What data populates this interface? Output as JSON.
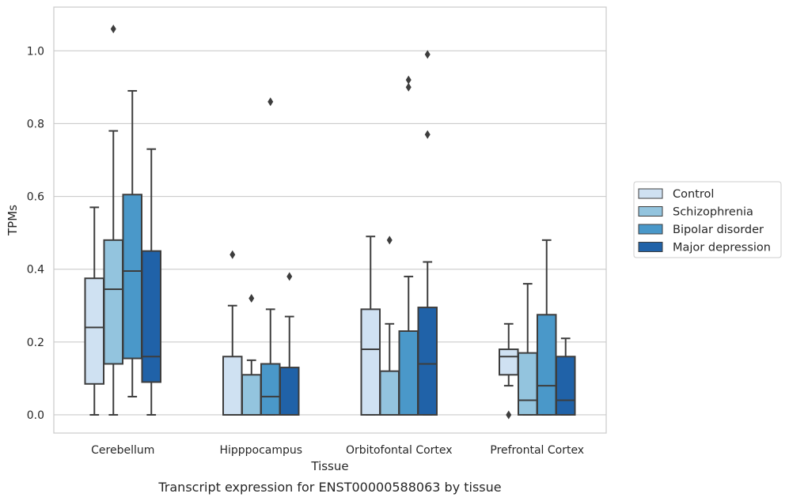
{
  "chart_data": {
    "type": "box",
    "xlabel": "Tissue",
    "ylabel": "TPMs",
    "caption": "Transcript expression for ENST00000588063 by tissue",
    "ylim": [
      -0.05,
      1.12
    ],
    "yticks": [
      "0.0",
      "0.2",
      "0.4",
      "0.6",
      "0.8",
      "1.0"
    ],
    "ytick_values": [
      0,
      0.2,
      0.4,
      0.6,
      0.8,
      1.0
    ],
    "grid": "horizontal",
    "legend_position": "right",
    "categories": [
      "Cerebellum",
      "Hipppocampus",
      "Orbitofontal Cortex",
      "Prefrontal Cortex"
    ],
    "series": [
      {
        "name": "Control",
        "color": "#cfe1f2",
        "boxes": [
          {
            "whislo": 0.0,
            "q1": 0.085,
            "med": 0.24,
            "q3": 0.375,
            "whishi": 0.57,
            "fliers": []
          },
          {
            "whislo": 0.0,
            "q1": 0.0,
            "med": 0.0,
            "q3": 0.16,
            "whishi": 0.3,
            "fliers": [
              0.44
            ]
          },
          {
            "whislo": 0.0,
            "q1": 0.0,
            "med": 0.18,
            "q3": 0.29,
            "whishi": 0.49,
            "fliers": []
          },
          {
            "whislo": 0.08,
            "q1": 0.11,
            "med": 0.16,
            "q3": 0.18,
            "whishi": 0.25,
            "fliers": [
              0.0
            ]
          }
        ]
      },
      {
        "name": "Schizophrenia",
        "color": "#93c4de",
        "boxes": [
          {
            "whislo": 0.0,
            "q1": 0.14,
            "med": 0.345,
            "q3": 0.48,
            "whishi": 0.78,
            "fliers": [
              1.06
            ]
          },
          {
            "whislo": 0.0,
            "q1": 0.0,
            "med": 0.0,
            "q3": 0.11,
            "whishi": 0.15,
            "fliers": [
              0.32
            ]
          },
          {
            "whislo": 0.0,
            "q1": 0.0,
            "med": 0.0,
            "q3": 0.12,
            "whishi": 0.25,
            "fliers": [
              0.48
            ]
          },
          {
            "whislo": 0.0,
            "q1": 0.0,
            "med": 0.04,
            "q3": 0.17,
            "whishi": 0.36,
            "fliers": []
          }
        ]
      },
      {
        "name": "Bipolar disorder",
        "color": "#4a98c9",
        "boxes": [
          {
            "whislo": 0.05,
            "q1": 0.155,
            "med": 0.395,
            "q3": 0.605,
            "whishi": 0.89,
            "fliers": []
          },
          {
            "whislo": 0.0,
            "q1": 0.0,
            "med": 0.05,
            "q3": 0.14,
            "whishi": 0.29,
            "fliers": [
              0.86
            ]
          },
          {
            "whislo": 0.0,
            "q1": 0.0,
            "med": 0.0,
            "q3": 0.23,
            "whishi": 0.38,
            "fliers": [
              0.92,
              0.9
            ]
          },
          {
            "whislo": 0.0,
            "q1": 0.0,
            "med": 0.08,
            "q3": 0.275,
            "whishi": 0.48,
            "fliers": []
          }
        ]
      },
      {
        "name": "Major depression",
        "color": "#2062a8",
        "boxes": [
          {
            "whislo": 0.0,
            "q1": 0.09,
            "med": 0.16,
            "q3": 0.45,
            "whishi": 0.73,
            "fliers": []
          },
          {
            "whislo": 0.0,
            "q1": 0.0,
            "med": 0.0,
            "q3": 0.13,
            "whishi": 0.27,
            "fliers": [
              0.38
            ]
          },
          {
            "whislo": 0.0,
            "q1": 0.0,
            "med": 0.14,
            "q3": 0.295,
            "whishi": 0.42,
            "fliers": [
              0.99,
              0.77
            ]
          },
          {
            "whislo": 0.0,
            "q1": 0.0,
            "med": 0.04,
            "q3": 0.16,
            "whishi": 0.21,
            "fliers": []
          }
        ]
      }
    ]
  }
}
